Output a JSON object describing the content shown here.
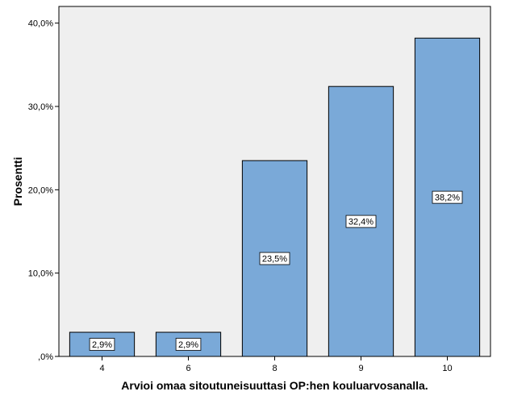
{
  "chart_data": {
    "type": "bar",
    "title": "",
    "xlabel": "Arvioi omaa sitoutuneisuuttasi OP:hen kouluarvosanalla.",
    "ylabel": "Prosentti",
    "categories": [
      "4",
      "6",
      "8",
      "9",
      "10"
    ],
    "values": [
      2.9,
      2.9,
      23.5,
      32.4,
      38.2
    ],
    "data_labels": [
      "2,9%",
      "2,9%",
      "23,5%",
      "32,4%",
      "38,2%"
    ],
    "ylim": [
      0,
      42
    ],
    "yticks": [
      0,
      10,
      20,
      30,
      40
    ],
    "ytick_labels": [
      ",0%",
      "10,0%",
      "20,0%",
      "30,0%",
      "40,0%"
    ],
    "grid": false,
    "legend": "none",
    "colors": {
      "bar": "#7aa9d8",
      "bar_border": "#000000",
      "plot_background": "#efefef",
      "page_background": "#ffffff"
    }
  }
}
